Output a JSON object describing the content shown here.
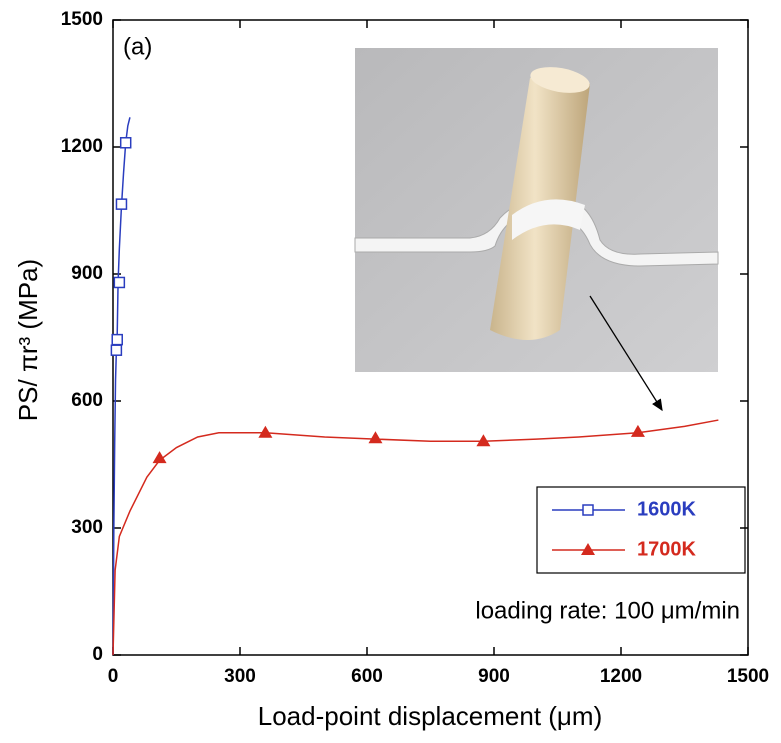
{
  "chart_data": {
    "type": "line",
    "xlabel": "Load-point displacement (μm)",
    "ylabel": "PS/ πr³ (MPa)",
    "annotations": [
      "(a)",
      "loading rate: 100 μm/min"
    ],
    "xlim": [
      0,
      1500
    ],
    "xticks": [
      0,
      300,
      600,
      900,
      1200,
      1500
    ],
    "ylim": [
      0,
      1500
    ],
    "yticks": [
      0,
      300,
      600,
      900,
      1200,
      1500
    ],
    "legend": "lower right",
    "series": [
      {
        "name": "1600K",
        "color": "#2a3dbf",
        "marker": "square",
        "x": [
          0,
          2,
          4,
          6,
          8,
          10,
          12,
          15,
          20,
          25,
          30,
          35,
          40
        ],
        "values": [
          0,
          300,
          500,
          650,
          720,
          760,
          880,
          960,
          1060,
          1140,
          1210,
          1250,
          1270
        ],
        "markers": {
          "x": [
            8,
            10,
            15,
            20,
            30
          ],
          "values": [
            720,
            745,
            880,
            1065,
            1210
          ]
        }
      },
      {
        "name": "1700K",
        "color": "#d42a1e",
        "marker": "triangle",
        "x": [
          0,
          5,
          15,
          40,
          80,
          110,
          150,
          200,
          250,
          360,
          500,
          620,
          750,
          875,
          1000,
          1100,
          1240,
          1350,
          1430
        ],
        "values": [
          0,
          200,
          280,
          340,
          420,
          460,
          490,
          515,
          525,
          525,
          515,
          510,
          505,
          505,
          510,
          515,
          525,
          540,
          555
        ],
        "markers": {
          "x": [
            110,
            360,
            620,
            875,
            1240
          ],
          "values": [
            465,
            525,
            512,
            505,
            527
          ]
        }
      }
    ]
  }
}
